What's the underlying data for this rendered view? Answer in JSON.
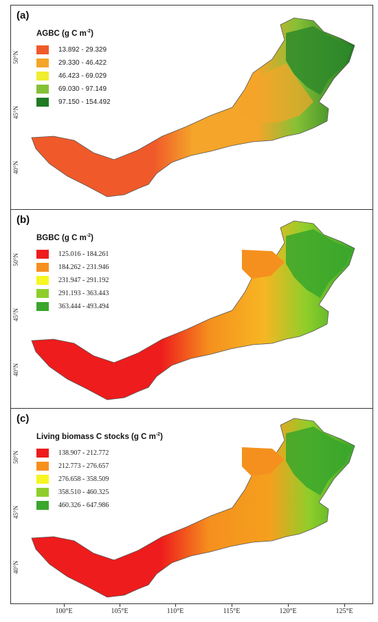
{
  "panels": [
    {
      "label": "(a)",
      "legend_title": "AGBC (g C m",
      "legend_title_sup": "-2",
      "legend_title_end": ")",
      "legend": [
        {
          "range": "13.892 - 29.329",
          "color": "#f05a2a"
        },
        {
          "range": "29.330 - 46.422",
          "color": "#f4a52a"
        },
        {
          "range": "46.423 - 69.029",
          "color": "#f0ee2e"
        },
        {
          "range": "69.030 - 97.149",
          "color": "#86c036"
        },
        {
          "range": "97.150 - 154.492",
          "color": "#1f7a23"
        }
      ],
      "lat_labels": [
        "50°N",
        "45°N",
        "40°N"
      ]
    },
    {
      "label": "(b)",
      "legend_title": "BGBC (g C m",
      "legend_title_sup": "-2",
      "legend_title_end": ")",
      "legend": [
        {
          "range": "125.016 - 184.261",
          "color": "#ee1c1c"
        },
        {
          "range": "184.262 - 231.946",
          "color": "#f5901e"
        },
        {
          "range": "231.947 - 291.192",
          "color": "#f6f623"
        },
        {
          "range": "291.193 - 363.443",
          "color": "#8fce2a"
        },
        {
          "range": "363.444 - 493.494",
          "color": "#3aa62c"
        }
      ],
      "lat_labels": [
        "50°N",
        "45°N",
        "40°N"
      ]
    },
    {
      "label": "(c)",
      "legend_title": "Living biomass C stocks (g C m",
      "legend_title_sup": "-2",
      "legend_title_end": ")",
      "legend": [
        {
          "range": "138.907 - 212.772",
          "color": "#ee1c1c"
        },
        {
          "range": "212.773 - 276.657",
          "color": "#f5901e"
        },
        {
          "range": "276.658 - 358.509",
          "color": "#f6f623"
        },
        {
          "range": "358.510 - 460.325",
          "color": "#8fce2a"
        },
        {
          "range": "460.326 - 647.986",
          "color": "#3aa62c"
        }
      ],
      "lat_labels": [
        "50°N",
        "45°N",
        "40°N"
      ]
    }
  ],
  "lon_labels": [
    "100°E",
    "105°E",
    "110°E",
    "115°E",
    "120°E",
    "125°E"
  ]
}
